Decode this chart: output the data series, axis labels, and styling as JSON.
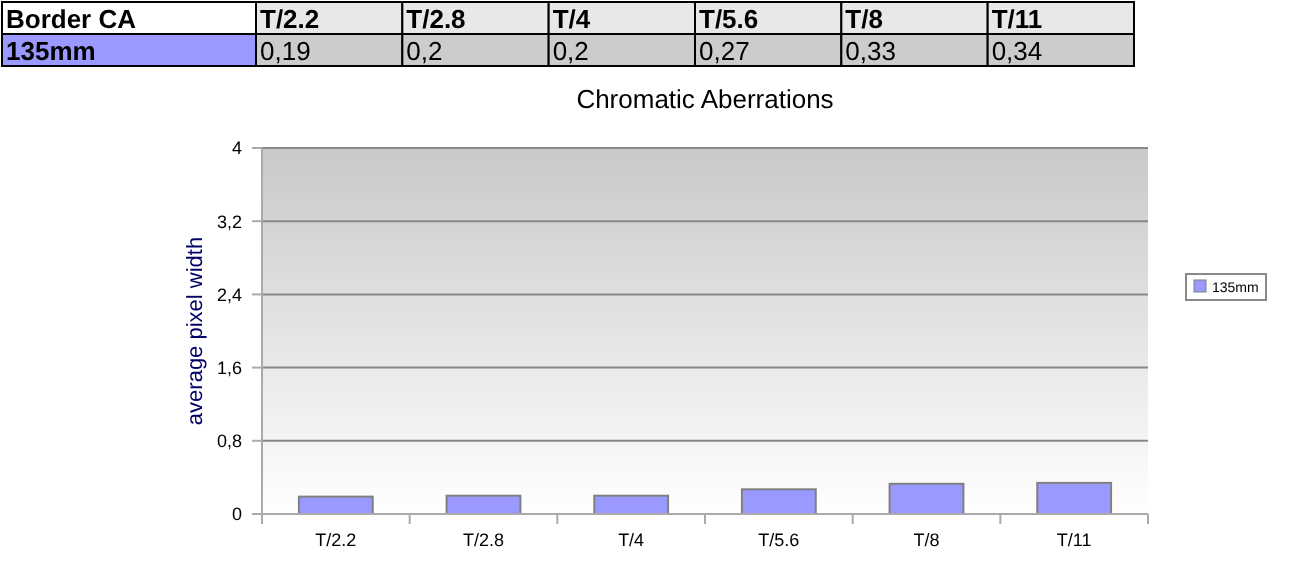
{
  "chart_data": {
    "type": "bar",
    "title": "Chromatic Aberrations",
    "ylabel": "average pixel width",
    "annotations": [
      "Border CA"
    ],
    "categories": [
      "T/2.2",
      "T/2.8",
      "T/4",
      "T/5.6",
      "T/8",
      "T/11"
    ],
    "series": [
      {
        "name": "135mm",
        "color": "#9999ff",
        "values": [
          0.19,
          0.2,
          0.2,
          0.27,
          0.33,
          0.34
        ],
        "value_labels": [
          "0,19",
          "0,2",
          "0,2",
          "0,27",
          "0,33",
          "0,34"
        ]
      }
    ],
    "ylim": [
      0,
      4
    ],
    "yticks": [
      0,
      {
        "value": 0.8,
        "label": "0,8"
      },
      {
        "value": 1.6,
        "label": "1,6"
      },
      {
        "value": 2.4,
        "label": "2,4"
      },
      {
        "value": 3.2,
        "label": "3,2"
      },
      4
    ],
    "grid": "y",
    "legend": "right"
  }
}
